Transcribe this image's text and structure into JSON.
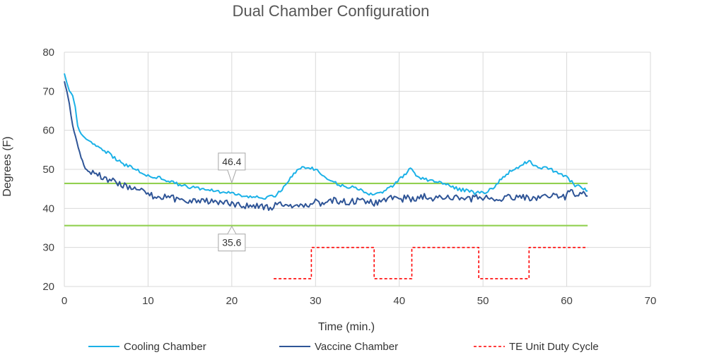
{
  "chart_data": {
    "type": "line",
    "title": "Dual Chamber Configuration",
    "xlabel": "Time (min.)",
    "ylabel": "Degrees (F)",
    "xlim": [
      0,
      70
    ],
    "ylim": [
      20,
      80
    ],
    "x_ticks": [
      0,
      10,
      20,
      30,
      40,
      50,
      60,
      70
    ],
    "y_ticks": [
      20,
      30,
      40,
      50,
      60,
      70,
      80
    ],
    "grid": true,
    "legend_position": "bottom",
    "reference_lines": [
      {
        "value": 46.4,
        "label": "46.4",
        "color": "#92D050"
      },
      {
        "value": 35.6,
        "label": "35.6",
        "color": "#92D050"
      }
    ],
    "series": [
      {
        "name": "Cooling Chamber",
        "color": "#1BB1E7",
        "style": "solid",
        "points": [
          [
            0,
            74.5
          ],
          [
            0.3,
            72
          ],
          [
            0.6,
            70
          ],
          [
            1,
            69
          ],
          [
            1.3,
            66
          ],
          [
            1.6,
            61
          ],
          [
            2,
            59
          ],
          [
            3,
            57
          ],
          [
            4,
            55.5
          ],
          [
            5,
            54.5
          ],
          [
            6,
            53
          ],
          [
            7,
            51.5
          ],
          [
            8,
            50.5
          ],
          [
            9,
            49.5
          ],
          [
            10,
            48.5
          ],
          [
            11,
            48
          ],
          [
            12,
            47.5
          ],
          [
            13,
            46.5
          ],
          [
            14,
            46
          ],
          [
            15,
            45.5
          ],
          [
            16,
            45.2
          ],
          [
            17,
            44.8
          ],
          [
            18,
            44.5
          ],
          [
            19,
            44.2
          ],
          [
            20,
            43.8
          ],
          [
            21,
            43.5
          ],
          [
            22,
            43
          ],
          [
            23,
            43
          ],
          [
            24,
            42.8
          ],
          [
            25,
            43
          ],
          [
            26,
            45
          ],
          [
            27,
            48
          ],
          [
            28,
            50
          ],
          [
            29,
            50.8
          ],
          [
            30,
            50
          ],
          [
            31,
            48.5
          ],
          [
            32,
            47
          ],
          [
            33,
            46
          ],
          [
            34,
            45.5
          ],
          [
            35,
            45
          ],
          [
            36,
            44
          ],
          [
            37,
            43.5
          ],
          [
            38,
            44
          ],
          [
            39,
            45.5
          ],
          [
            40,
            47.5
          ],
          [
            41,
            49.5
          ],
          [
            41.5,
            50.3
          ],
          [
            42,
            48.5
          ],
          [
            43,
            47.5
          ],
          [
            44,
            47
          ],
          [
            45,
            46.5
          ],
          [
            46,
            46
          ],
          [
            47,
            45
          ],
          [
            48,
            44.5
          ],
          [
            49,
            44
          ],
          [
            50,
            44
          ],
          [
            51,
            45
          ],
          [
            52,
            47
          ],
          [
            53,
            49
          ],
          [
            54,
            50.5
          ],
          [
            55,
            51.5
          ],
          [
            55.5,
            52.3
          ],
          [
            56,
            51
          ],
          [
            57,
            50.5
          ],
          [
            58,
            50
          ],
          [
            59,
            49
          ],
          [
            60,
            48
          ],
          [
            61,
            46
          ],
          [
            62,
            45
          ],
          [
            62.5,
            44.5
          ]
        ]
      },
      {
        "name": "Vaccine Chamber",
        "color": "#2F5597",
        "style": "solid",
        "points": [
          [
            0,
            72.5
          ],
          [
            0.3,
            70
          ],
          [
            0.6,
            67
          ],
          [
            1,
            61
          ],
          [
            1.5,
            57
          ],
          [
            2,
            53
          ],
          [
            2.5,
            50
          ],
          [
            3,
            49.5
          ],
          [
            4,
            48.5
          ],
          [
            5,
            47.5
          ],
          [
            6,
            47
          ],
          [
            7,
            46
          ],
          [
            8,
            45
          ],
          [
            9,
            44.5
          ],
          [
            10,
            43.5
          ],
          [
            11,
            43
          ],
          [
            12,
            43
          ],
          [
            13,
            42.5
          ],
          [
            14,
            42.2
          ],
          [
            15,
            42
          ],
          [
            16,
            42
          ],
          [
            17,
            41.8
          ],
          [
            18,
            41.5
          ],
          [
            19,
            41.3
          ],
          [
            20,
            41.2
          ],
          [
            21,
            41
          ],
          [
            22,
            40.5
          ],
          [
            23,
            40.5
          ],
          [
            24,
            40.3
          ],
          [
            25,
            40.5
          ],
          [
            26,
            41
          ],
          [
            27,
            41
          ],
          [
            28,
            41.2
          ],
          [
            29,
            41
          ],
          [
            30,
            41.5
          ],
          [
            31,
            41.5
          ],
          [
            32,
            42
          ],
          [
            33,
            42
          ],
          [
            34,
            41.5
          ],
          [
            35,
            42
          ],
          [
            36,
            42
          ],
          [
            37,
            41.5
          ],
          [
            38,
            42
          ],
          [
            39,
            42.5
          ],
          [
            40,
            42.5
          ],
          [
            41,
            42.5
          ],
          [
            42,
            42.5
          ],
          [
            43,
            43
          ],
          [
            44,
            42.5
          ],
          [
            45,
            42.5
          ],
          [
            46,
            43
          ],
          [
            47,
            42.5
          ],
          [
            48,
            42.5
          ],
          [
            49,
            42.5
          ],
          [
            50,
            43
          ],
          [
            51,
            42.5
          ],
          [
            52,
            42.5
          ],
          [
            53,
            43
          ],
          [
            54,
            43
          ],
          [
            55,
            43
          ],
          [
            56,
            42.5
          ],
          [
            57,
            43
          ],
          [
            58,
            43
          ],
          [
            59,
            43
          ],
          [
            60,
            43
          ],
          [
            60.5,
            45
          ],
          [
            61,
            44
          ],
          [
            62,
            43.5
          ],
          [
            62.5,
            43.2
          ]
        ]
      },
      {
        "name": "TE Unit Duty Cycle",
        "color": "#FF0000",
        "style": "dashed",
        "points": [
          [
            25,
            22
          ],
          [
            29.5,
            22
          ],
          [
            29.5,
            30
          ],
          [
            37,
            30
          ],
          [
            37,
            22
          ],
          [
            41.5,
            22
          ],
          [
            41.5,
            30
          ],
          [
            49.5,
            30
          ],
          [
            49.5,
            22
          ],
          [
            55.5,
            22
          ],
          [
            55.5,
            30
          ],
          [
            62.5,
            30
          ]
        ]
      }
    ]
  }
}
